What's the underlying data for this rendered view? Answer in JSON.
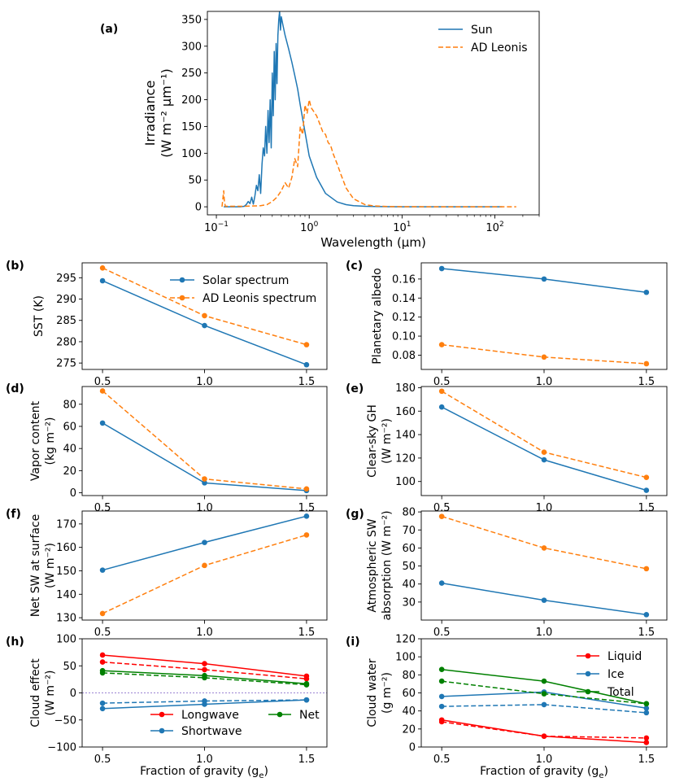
{
  "figure": {
    "xlabel_bottom": "Fraction of gravity (g",
    "xlabel_bottom_sub": "e",
    "xlabel_bottom_close": ")"
  },
  "chart_data": [
    {
      "id": "a",
      "panel_label": "(a)",
      "type": "line",
      "xscale": "log",
      "xlim": [
        0.08,
        300
      ],
      "ylim": [
        -15,
        365
      ],
      "ylabel_lines": [
        "Irradiance",
        "(W m⁻² μm⁻¹)"
      ],
      "xlabel": "Wavelength (μm)",
      "yticks": [
        0,
        50,
        100,
        150,
        200,
        250,
        300,
        350
      ],
      "xticks": [
        {
          "value": 0.1,
          "base": "10",
          "exp": "−1"
        },
        {
          "value": 1,
          "base": "10",
          "exp": "0"
        },
        {
          "value": 10,
          "base": "10",
          "exp": "1"
        },
        {
          "value": 100,
          "base": "10",
          "exp": "2"
        }
      ],
      "legend_position": "top-right",
      "series": [
        {
          "name": "Sun",
          "color": "#1f77b4",
          "dashed": false,
          "x": [
            0.12,
            0.18,
            0.2,
            0.21,
            0.22,
            0.23,
            0.24,
            0.25,
            0.26,
            0.27,
            0.28,
            0.29,
            0.3,
            0.31,
            0.32,
            0.33,
            0.34,
            0.35,
            0.36,
            0.37,
            0.38,
            0.39,
            0.4,
            0.41,
            0.42,
            0.43,
            0.44,
            0.45,
            0.46,
            0.47,
            0.48,
            0.49,
            0.5,
            0.52,
            0.55,
            0.6,
            0.65,
            0.7,
            0.75,
            0.8,
            0.9,
            1.0,
            1.2,
            1.5,
            2.0,
            2.5,
            3.0,
            4.0,
            5.0,
            7.0,
            10,
            20,
            50,
            100,
            120
          ],
          "y": [
            0,
            0,
            1,
            4,
            10,
            6,
            18,
            5,
            20,
            40,
            30,
            60,
            25,
            80,
            110,
            95,
            150,
            100,
            180,
            120,
            200,
            110,
            250,
            170,
            290,
            200,
            305,
            230,
            320,
            350,
            365,
            330,
            355,
            340,
            320,
            295,
            270,
            245,
            220,
            190,
            140,
            95,
            55,
            25,
            9,
            4,
            2,
            1,
            0.5,
            0.2,
            0,
            0,
            0,
            0,
            0
          ]
        },
        {
          "name": "AD Leonis",
          "color": "#ff7f0e",
          "dashed": true,
          "x": [
            0.115,
            0.12,
            0.122,
            0.125,
            0.13,
            0.2,
            0.3,
            0.35,
            0.4,
            0.45,
            0.5,
            0.55,
            0.6,
            0.65,
            0.7,
            0.75,
            0.8,
            0.85,
            0.9,
            0.95,
            1.0,
            1.05,
            1.1,
            1.2,
            1.3,
            1.4,
            1.5,
            1.6,
            1.7,
            1.8,
            2.0,
            2.2,
            2.5,
            3.0,
            4.0,
            5.0,
            7.0,
            10,
            20,
            50,
            100,
            170
          ],
          "y": [
            0,
            30,
            10,
            1,
            1,
            1,
            2,
            4,
            10,
            18,
            30,
            45,
            35,
            55,
            90,
            75,
            150,
            135,
            190,
            175,
            200,
            185,
            180,
            170,
            155,
            140,
            135,
            120,
            115,
            100,
            80,
            60,
            35,
            15,
            4,
            1.5,
            0.5,
            0.2,
            0,
            0,
            0,
            0
          ]
        }
      ]
    },
    {
      "id": "b",
      "panel_label": "(b)",
      "type": "line",
      "ylabel_lines": [
        "SST (K)"
      ],
      "ylim": [
        273.5,
        298.5
      ],
      "yticks": [
        275,
        280,
        285,
        290,
        295
      ],
      "x": [
        0.5,
        1.0,
        1.5
      ],
      "xtick_labels": [
        "0.5",
        "1.0",
        "1.5"
      ],
      "legend_position": "top-right",
      "series": [
        {
          "name": "Solar spectrum",
          "color": "#1f77b4",
          "dashed": false,
          "values": [
            294.3,
            283.8,
            274.6
          ]
        },
        {
          "name": "AD Leonis spectrum",
          "color": "#ff7f0e",
          "dashed": true,
          "values": [
            297.3,
            286.1,
            279.3
          ]
        }
      ]
    },
    {
      "id": "c",
      "panel_label": "(c)",
      "type": "line",
      "ylabel_lines": [
        "Planetary albedo"
      ],
      "ylim": [
        0.065,
        0.177
      ],
      "yticks": [
        0.08,
        0.1,
        0.12,
        0.14,
        0.16
      ],
      "ytick_labels": [
        "0.08",
        "0.10",
        "0.12",
        "0.14",
        "0.16"
      ],
      "x": [
        0.5,
        1.0,
        1.5
      ],
      "xtick_labels": [
        "0.5",
        "1.0",
        "1.5"
      ],
      "series": [
        {
          "name": "Solar spectrum",
          "color": "#1f77b4",
          "dashed": false,
          "values": [
            0.171,
            0.16,
            0.146
          ]
        },
        {
          "name": "AD Leonis spectrum",
          "color": "#ff7f0e",
          "dashed": true,
          "values": [
            0.091,
            0.078,
            0.071
          ]
        }
      ]
    },
    {
      "id": "d",
      "panel_label": "(d)",
      "type": "line",
      "ylabel_lines": [
        "Vapor content",
        "(kg m⁻²)"
      ],
      "ylim": [
        -2.5,
        96
      ],
      "yticks": [
        0,
        20,
        40,
        60,
        80
      ],
      "x": [
        0.5,
        1.0,
        1.5
      ],
      "xtick_labels": [
        "0.5",
        "1.0",
        "1.5"
      ],
      "series": [
        {
          "name": "Solar spectrum",
          "color": "#1f77b4",
          "dashed": false,
          "values": [
            63,
            9,
            2
          ]
        },
        {
          "name": "AD Leonis spectrum",
          "color": "#ff7f0e",
          "dashed": true,
          "values": [
            92,
            12.5,
            3.5
          ]
        }
      ]
    },
    {
      "id": "e",
      "panel_label": "(e)",
      "type": "line",
      "ylabel_lines": [
        "Clear-sky GH",
        "(W m⁻²)"
      ],
      "ylim": [
        88,
        181
      ],
      "yticks": [
        100,
        120,
        140,
        160,
        180
      ],
      "x": [
        0.5,
        1.0,
        1.5
      ],
      "xtick_labels": [
        "0.5",
        "1.0",
        "1.5"
      ],
      "series": [
        {
          "name": "Solar spectrum",
          "color": "#1f77b4",
          "dashed": false,
          "values": [
            163.5,
            118.5,
            92.5
          ]
        },
        {
          "name": "AD Leonis spectrum",
          "color": "#ff7f0e",
          "dashed": true,
          "values": [
            177,
            125,
            103.5
          ]
        }
      ]
    },
    {
      "id": "f",
      "panel_label": "(f)",
      "type": "line",
      "ylabel_lines": [
        "Net SW at surface",
        "(W m⁻²)"
      ],
      "ylim": [
        129,
        175.5
      ],
      "yticks": [
        130,
        140,
        150,
        160,
        170
      ],
      "x": [
        0.5,
        1.0,
        1.5
      ],
      "xtick_labels": [
        "0.5",
        "1.0",
        "1.5"
      ],
      "series": [
        {
          "name": "Solar spectrum",
          "color": "#1f77b4",
          "dashed": false,
          "values": [
            150.3,
            162.1,
            173.3
          ]
        },
        {
          "name": "AD Leonis spectrum",
          "color": "#ff7f0e",
          "dashed": true,
          "values": [
            131.8,
            152.3,
            165.3
          ]
        }
      ]
    },
    {
      "id": "g",
      "panel_label": "(g)",
      "type": "line",
      "ylabel_lines": [
        "Atmospheric SW",
        "absorption (W m⁻²)"
      ],
      "ylim": [
        20,
        80.5
      ],
      "yticks": [
        30,
        40,
        50,
        60,
        70,
        80
      ],
      "x": [
        0.5,
        1.0,
        1.5
      ],
      "xtick_labels": [
        "0.5",
        "1.0",
        "1.5"
      ],
      "series": [
        {
          "name": "Solar spectrum",
          "color": "#1f77b4",
          "dashed": false,
          "values": [
            40.5,
            31,
            23
          ]
        },
        {
          "name": "AD Leonis spectrum",
          "color": "#ff7f0e",
          "dashed": true,
          "values": [
            77.5,
            60,
            48.5
          ]
        }
      ]
    },
    {
      "id": "h",
      "panel_label": "(h)",
      "type": "line",
      "ylabel_lines": [
        "Cloud effect",
        "(W m⁻²)"
      ],
      "ylim": [
        -100,
        100
      ],
      "yticks": [
        -100,
        -50,
        0,
        50,
        100
      ],
      "ytick_labels": [
        "−100",
        "−50",
        "0",
        "50",
        "100"
      ],
      "x": [
        0.5,
        1.0,
        1.5
      ],
      "xtick_labels": [
        "0.5",
        "1.0",
        "1.5"
      ],
      "zero_line": true,
      "legend_position": "lower center",
      "legend_entries": [
        {
          "name": "Longwave",
          "color": "#ff0000"
        },
        {
          "name": "Net",
          "color": "#008000"
        },
        {
          "name": "Shortwave",
          "color": "#1f77b4"
        }
      ],
      "series": [
        {
          "name": "Longwave (solar)",
          "color": "#ff0000",
          "dashed": false,
          "values": [
            70,
            54,
            31
          ]
        },
        {
          "name": "Longwave (AD Leonis)",
          "color": "#ff0000",
          "dashed": true,
          "values": [
            57,
            43,
            26
          ]
        },
        {
          "name": "Net (solar)",
          "color": "#008000",
          "dashed": false,
          "values": [
            41,
            32,
            17
          ]
        },
        {
          "name": "Net (AD Leonis)",
          "color": "#008000",
          "dashed": true,
          "values": [
            37,
            28,
            15
          ]
        },
        {
          "name": "Shortwave (solar)",
          "color": "#1f77b4",
          "dashed": false,
          "values": [
            -29,
            -21,
            -13
          ]
        },
        {
          "name": "Shortwave (AD Leonis)",
          "color": "#1f77b4",
          "dashed": true,
          "values": [
            -19,
            -15,
            -13
          ]
        }
      ]
    },
    {
      "id": "i",
      "panel_label": "(i)",
      "type": "line",
      "ylabel_lines": [
        "Cloud water",
        "(g m⁻²)"
      ],
      "ylim": [
        0,
        120
      ],
      "yticks": [
        0,
        20,
        40,
        60,
        80,
        100,
        120
      ],
      "x": [
        0.5,
        1.0,
        1.5
      ],
      "xtick_labels": [
        "0.5",
        "1.0",
        "1.5"
      ],
      "legend_position": "top-right",
      "legend_entries": [
        {
          "name": "Liquid",
          "color": "#ff0000"
        },
        {
          "name": "Ice",
          "color": "#1f77b4"
        },
        {
          "name": "Total",
          "color": "#008000"
        }
      ],
      "series": [
        {
          "name": "Liquid (solar)",
          "color": "#ff0000",
          "dashed": false,
          "values": [
            30,
            12,
            5
          ]
        },
        {
          "name": "Liquid (AD Leonis)",
          "color": "#ff0000",
          "dashed": true,
          "values": [
            28,
            12,
            10
          ]
        },
        {
          "name": "Ice (solar)",
          "color": "#1f77b4",
          "dashed": false,
          "values": [
            56,
            61,
            43
          ]
        },
        {
          "name": "Ice (AD Leonis)",
          "color": "#1f77b4",
          "dashed": true,
          "values": [
            45,
            47,
            38
          ]
        },
        {
          "name": "Total (solar)",
          "color": "#008000",
          "dashed": false,
          "values": [
            86,
            73,
            48
          ]
        },
        {
          "name": "Total (AD Leonis)",
          "color": "#008000",
          "dashed": true,
          "values": [
            73,
            59,
            48
          ]
        }
      ]
    }
  ]
}
